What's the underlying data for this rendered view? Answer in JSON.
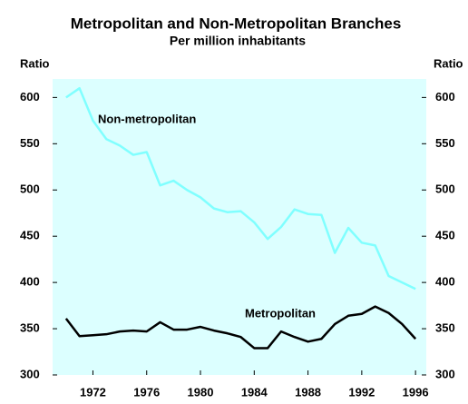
{
  "chart_data": {
    "type": "line",
    "title": "Metropolitan and Non-Metropolitan Branches",
    "subtitle": "Per million inhabitants",
    "y_label": "Ratio",
    "y2_label": "Ratio",
    "x": [
      1970,
      1971,
      1972,
      1973,
      1974,
      1975,
      1976,
      1977,
      1978,
      1979,
      1980,
      1981,
      1982,
      1983,
      1984,
      1985,
      1986,
      1987,
      1988,
      1989,
      1990,
      1991,
      1992,
      1993,
      1994,
      1995,
      1996
    ],
    "series": [
      {
        "name": "Non-metropolitan",
        "color": "#80ffff",
        "values": [
          600,
          610,
          575,
          555,
          548,
          538,
          541,
          505,
          510,
          500,
          492,
          480,
          476,
          477,
          465,
          447,
          460,
          479,
          474,
          473,
          432,
          459,
          443,
          440,
          407,
          400,
          393
        ]
      },
      {
        "name": "Metropolitan",
        "color": "#000000",
        "values": [
          361,
          342,
          343,
          344,
          347,
          348,
          347,
          357,
          349,
          349,
          352,
          348,
          345,
          341,
          329,
          329,
          347,
          341,
          336,
          339,
          355,
          364,
          366,
          374,
          367,
          355,
          339
        ]
      }
    ],
    "xlim": [
      1969,
      1996.8
    ],
    "xticks": [
      1972,
      1976,
      1980,
      1984,
      1988,
      1992,
      1996
    ],
    "ylim": [
      300,
      620
    ],
    "yticks": [
      300,
      350,
      400,
      450,
      500,
      550,
      600
    ],
    "y2lim": [
      300,
      620
    ],
    "y2ticks": [
      300,
      350,
      400,
      450,
      500,
      550,
      600
    ],
    "background": "#dcffff"
  }
}
